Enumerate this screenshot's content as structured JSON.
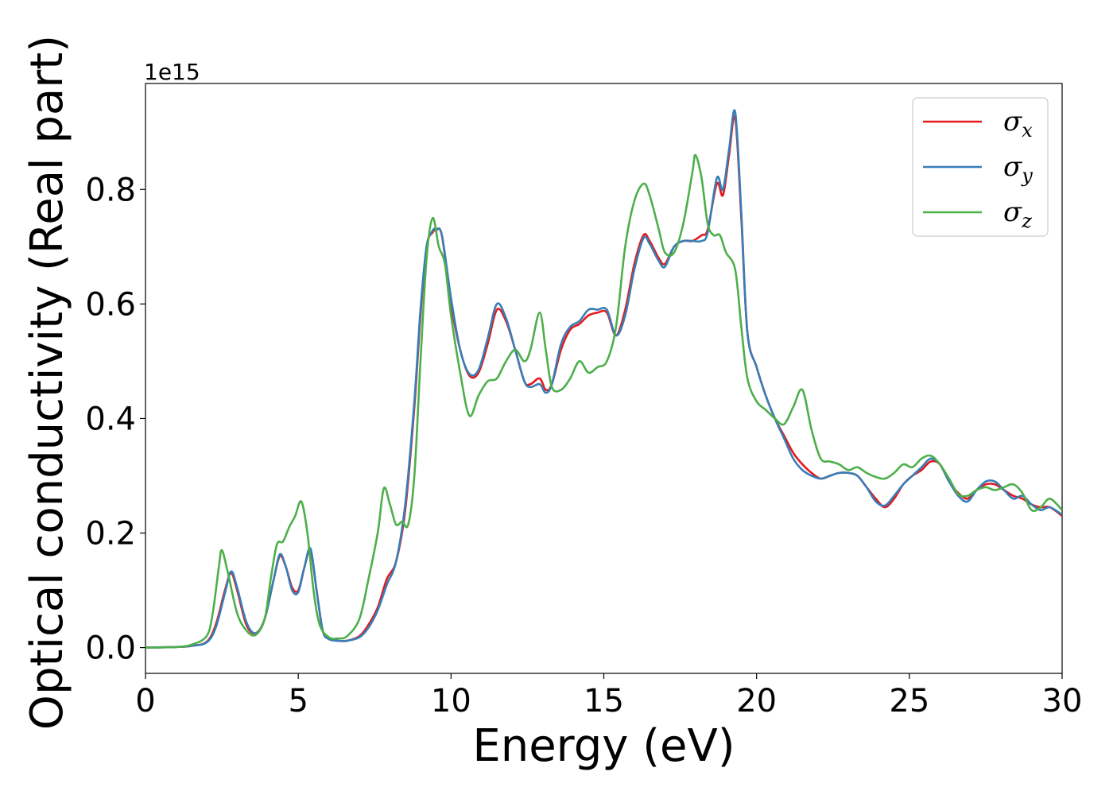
{
  "chart_data": {
    "type": "line",
    "title": "",
    "xlabel": "Energy (eV)",
    "ylabel": "Optical conductivity (Real part)",
    "y_offset_label": "1e15",
    "xlim": [
      0,
      30
    ],
    "ylim": [
      -0.045,
      0.985
    ],
    "x_ticks": [
      0,
      5,
      10,
      15,
      20,
      25,
      30
    ],
    "y_ticks": [
      0.0,
      0.2,
      0.4,
      0.6,
      0.8
    ],
    "y_tick_labels": [
      "0.0",
      "0.2",
      "0.4",
      "0.6",
      "0.8"
    ],
    "x_tick_labels": [
      "0",
      "5",
      "10",
      "15",
      "20",
      "25",
      "30"
    ],
    "grid": false,
    "legend_position": "top-right",
    "series": [
      {
        "name": "σx",
        "legend_base": "σ",
        "legend_sub": "x",
        "color": "#e41a1c",
        "x": [
          0,
          1,
          1.5,
          2,
          2.3,
          2.6,
          2.8,
          3.0,
          3.3,
          3.6,
          3.9,
          4.2,
          4.4,
          4.6,
          4.8,
          5.0,
          5.2,
          5.4,
          5.6,
          5.8,
          6.0,
          6.3,
          6.6,
          7.0,
          7.3,
          7.6,
          7.9,
          8.2,
          8.5,
          8.8,
          9.0,
          9.2,
          9.4,
          9.5,
          9.7,
          10.0,
          10.3,
          10.6,
          10.9,
          11.2,
          11.5,
          11.8,
          12.1,
          12.4,
          12.6,
          12.9,
          13.1,
          13.3,
          13.6,
          13.9,
          14.2,
          14.5,
          14.8,
          15.1,
          15.4,
          15.7,
          16.0,
          16.3,
          16.5,
          16.8,
          17.0,
          17.3,
          17.6,
          17.9,
          18.2,
          18.4,
          18.7,
          18.9,
          19.1,
          19.3,
          19.5,
          19.7,
          20.0,
          20.3,
          20.6,
          20.9,
          21.2,
          21.5,
          21.8,
          22.1,
          22.4,
          22.7,
          23.0,
          23.3,
          23.6,
          23.9,
          24.2,
          24.5,
          24.8,
          25.1,
          25.4,
          25.7,
          26.0,
          26.3,
          26.6,
          26.9,
          27.2,
          27.5,
          27.8,
          28.1,
          28.4,
          28.7,
          29.0,
          29.3,
          29.6,
          30.0
        ],
        "values": [
          0.0,
          0.001,
          0.003,
          0.01,
          0.04,
          0.1,
          0.13,
          0.1,
          0.04,
          0.025,
          0.05,
          0.12,
          0.16,
          0.14,
          0.105,
          0.1,
          0.14,
          0.17,
          0.1,
          0.03,
          0.015,
          0.012,
          0.012,
          0.02,
          0.04,
          0.07,
          0.12,
          0.15,
          0.24,
          0.42,
          0.58,
          0.7,
          0.725,
          0.728,
          0.72,
          0.6,
          0.52,
          0.475,
          0.48,
          0.53,
          0.59,
          0.57,
          0.52,
          0.465,
          0.46,
          0.47,
          0.45,
          0.46,
          0.52,
          0.555,
          0.565,
          0.58,
          0.585,
          0.585,
          0.545,
          0.59,
          0.67,
          0.72,
          0.71,
          0.68,
          0.67,
          0.7,
          0.71,
          0.71,
          0.72,
          0.73,
          0.81,
          0.79,
          0.86,
          0.925,
          0.75,
          0.55,
          0.49,
          0.44,
          0.4,
          0.37,
          0.34,
          0.32,
          0.305,
          0.295,
          0.3,
          0.305,
          0.305,
          0.3,
          0.28,
          0.26,
          0.245,
          0.26,
          0.285,
          0.3,
          0.31,
          0.325,
          0.32,
          0.29,
          0.27,
          0.26,
          0.275,
          0.285,
          0.285,
          0.275,
          0.265,
          0.26,
          0.25,
          0.245,
          0.245,
          0.23
        ]
      },
      {
        "name": "σy",
        "legend_base": "σ",
        "legend_sub": "y",
        "color": "#377eb8",
        "x": [
          0,
          1,
          1.5,
          2,
          2.3,
          2.6,
          2.8,
          3.0,
          3.3,
          3.6,
          3.9,
          4.2,
          4.4,
          4.6,
          4.8,
          5.0,
          5.2,
          5.4,
          5.6,
          5.8,
          6.0,
          6.3,
          6.6,
          7.0,
          7.3,
          7.6,
          7.9,
          8.2,
          8.5,
          8.8,
          9.0,
          9.2,
          9.4,
          9.5,
          9.7,
          10.0,
          10.3,
          10.6,
          10.9,
          11.2,
          11.5,
          11.8,
          12.1,
          12.4,
          12.6,
          12.9,
          13.1,
          13.3,
          13.6,
          13.9,
          14.2,
          14.5,
          14.8,
          15.1,
          15.4,
          15.7,
          16.0,
          16.3,
          16.5,
          16.8,
          17.0,
          17.3,
          17.6,
          17.9,
          18.2,
          18.4,
          18.7,
          18.9,
          19.1,
          19.3,
          19.5,
          19.7,
          20.0,
          20.3,
          20.6,
          20.9,
          21.2,
          21.5,
          21.8,
          22.1,
          22.4,
          22.7,
          23.0,
          23.3,
          23.6,
          23.9,
          24.2,
          24.5,
          24.8,
          25.1,
          25.4,
          25.7,
          26.0,
          26.3,
          26.6,
          26.9,
          27.2,
          27.5,
          27.8,
          28.1,
          28.4,
          28.7,
          29.0,
          29.3,
          29.6,
          30.0
        ],
        "values": [
          0.0,
          0.001,
          0.003,
          0.009,
          0.035,
          0.095,
          0.133,
          0.105,
          0.045,
          0.025,
          0.05,
          0.12,
          0.163,
          0.14,
          0.1,
          0.097,
          0.14,
          0.173,
          0.1,
          0.03,
          0.015,
          0.012,
          0.012,
          0.018,
          0.035,
          0.065,
          0.11,
          0.15,
          0.25,
          0.43,
          0.59,
          0.7,
          0.728,
          0.73,
          0.72,
          0.61,
          0.52,
          0.478,
          0.485,
          0.54,
          0.6,
          0.575,
          0.52,
          0.465,
          0.455,
          0.46,
          0.445,
          0.46,
          0.53,
          0.56,
          0.57,
          0.59,
          0.59,
          0.59,
          0.545,
          0.58,
          0.66,
          0.715,
          0.705,
          0.675,
          0.665,
          0.7,
          0.71,
          0.71,
          0.71,
          0.725,
          0.82,
          0.8,
          0.87,
          0.935,
          0.76,
          0.55,
          0.49,
          0.44,
          0.4,
          0.365,
          0.33,
          0.31,
          0.3,
          0.295,
          0.3,
          0.305,
          0.305,
          0.3,
          0.28,
          0.255,
          0.248,
          0.265,
          0.285,
          0.3,
          0.315,
          0.33,
          0.32,
          0.29,
          0.265,
          0.255,
          0.275,
          0.29,
          0.29,
          0.275,
          0.26,
          0.265,
          0.25,
          0.24,
          0.245,
          0.232
        ]
      },
      {
        "name": "σz",
        "legend_base": "σ",
        "legend_sub": "z",
        "color": "#4daf4a",
        "x": [
          0,
          1,
          1.5,
          2,
          2.2,
          2.4,
          2.5,
          2.7,
          3.0,
          3.3,
          3.6,
          3.9,
          4.1,
          4.3,
          4.5,
          4.7,
          4.9,
          5.1,
          5.3,
          5.5,
          5.7,
          6.0,
          6.3,
          6.6,
          7.0,
          7.3,
          7.6,
          7.8,
          8.0,
          8.2,
          8.4,
          8.6,
          8.8,
          9.0,
          9.2,
          9.4,
          9.6,
          9.8,
          10.0,
          10.3,
          10.6,
          10.9,
          11.2,
          11.5,
          11.8,
          12.1,
          12.4,
          12.6,
          12.9,
          13.1,
          13.3,
          13.6,
          13.9,
          14.2,
          14.5,
          14.8,
          15.1,
          15.4,
          15.7,
          16.0,
          16.3,
          16.5,
          16.8,
          17.0,
          17.3,
          17.6,
          17.9,
          18.0,
          18.2,
          18.4,
          18.6,
          18.8,
          19.0,
          19.3,
          19.5,
          19.7,
          20.0,
          20.3,
          20.6,
          20.9,
          21.2,
          21.5,
          21.8,
          22.1,
          22.4,
          22.7,
          23.0,
          23.3,
          23.6,
          23.9,
          24.2,
          24.5,
          24.8,
          25.1,
          25.4,
          25.7,
          26.0,
          26.3,
          26.6,
          26.9,
          27.2,
          27.5,
          27.8,
          28.1,
          28.4,
          28.7,
          29.0,
          29.3,
          29.6,
          30.0
        ],
        "values": [
          0.0,
          0.001,
          0.005,
          0.02,
          0.06,
          0.14,
          0.17,
          0.13,
          0.06,
          0.03,
          0.022,
          0.05,
          0.12,
          0.18,
          0.185,
          0.21,
          0.23,
          0.255,
          0.2,
          0.1,
          0.04,
          0.018,
          0.016,
          0.02,
          0.05,
          0.12,
          0.2,
          0.278,
          0.25,
          0.215,
          0.22,
          0.215,
          0.3,
          0.5,
          0.68,
          0.75,
          0.7,
          0.67,
          0.58,
          0.48,
          0.405,
          0.44,
          0.465,
          0.47,
          0.5,
          0.52,
          0.5,
          0.52,
          0.585,
          0.52,
          0.455,
          0.45,
          0.47,
          0.5,
          0.48,
          0.49,
          0.5,
          0.56,
          0.7,
          0.78,
          0.81,
          0.79,
          0.73,
          0.69,
          0.69,
          0.74,
          0.83,
          0.86,
          0.82,
          0.74,
          0.72,
          0.72,
          0.69,
          0.66,
          0.56,
          0.47,
          0.43,
          0.415,
          0.4,
          0.39,
          0.42,
          0.45,
          0.38,
          0.33,
          0.325,
          0.32,
          0.31,
          0.315,
          0.305,
          0.298,
          0.295,
          0.305,
          0.32,
          0.315,
          0.33,
          0.335,
          0.32,
          0.295,
          0.268,
          0.265,
          0.275,
          0.28,
          0.275,
          0.28,
          0.285,
          0.27,
          0.24,
          0.245,
          0.26,
          0.24
        ]
      }
    ]
  }
}
